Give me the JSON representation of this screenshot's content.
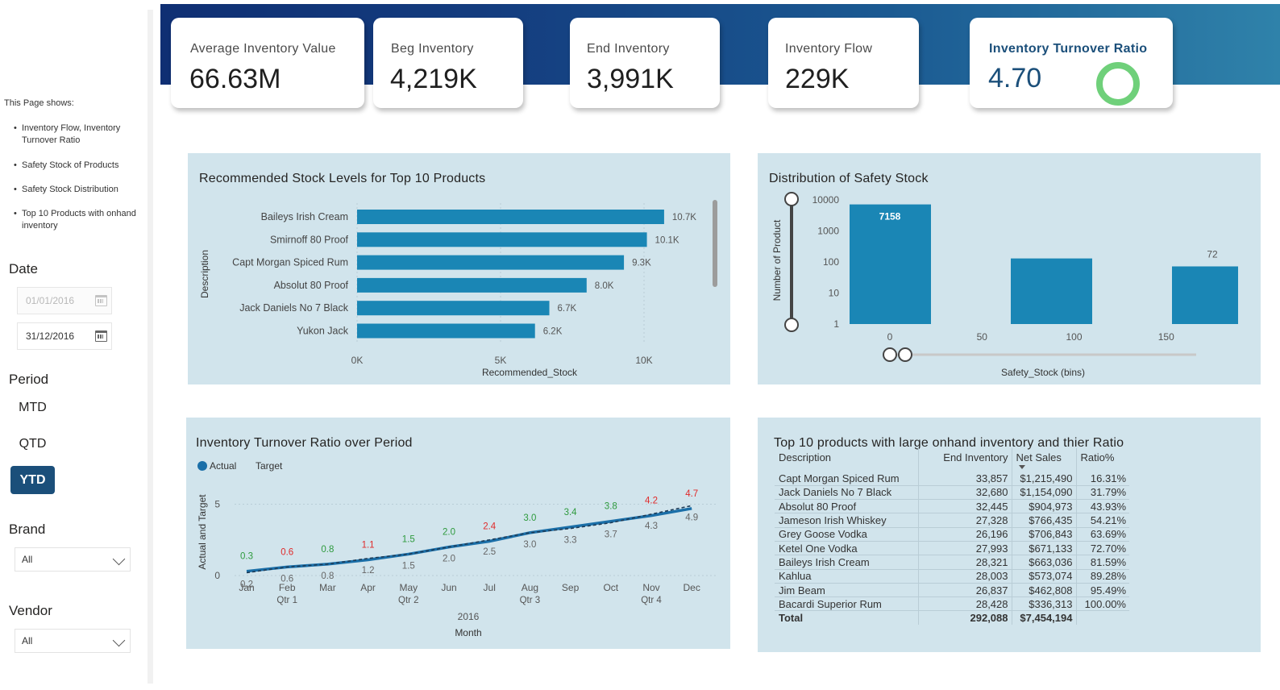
{
  "sidebar": {
    "intro_title": "This Page shows:",
    "intro_items": [
      "Inventory Flow, Inventory Turnover Ratio",
      "Safety Stock of Products",
      "Safety Stock Distribution",
      "Top 10 Products with onhand inventory"
    ],
    "date": {
      "label": "Date",
      "start": "01/01/2016",
      "end": "31/12/2016"
    },
    "period": {
      "label": "Period",
      "options": [
        "MTD",
        "QTD",
        "YTD"
      ],
      "selected": "YTD"
    },
    "brand": {
      "label": "Brand",
      "value": "All"
    },
    "vendor": {
      "label": "Vendor",
      "value": "All"
    }
  },
  "kpis": [
    {
      "label": "Average Inventory Value",
      "value": "66.63M"
    },
    {
      "label": "Beg Inventory",
      "value": "4,219K"
    },
    {
      "label": "End Inventory",
      "value": "3,991K"
    },
    {
      "label": "Inventory Flow",
      "value": "229K"
    },
    {
      "label": "Inventory Turnover Ratio",
      "value": "4.70"
    }
  ],
  "charts": {
    "stock": {
      "title": "Recommended Stock Levels for Top 10 Products"
    },
    "safety": {
      "title": "Distribution of Safety Stock"
    },
    "turnover": {
      "title": "Inventory Turnover Ratio over Period"
    },
    "top10": {
      "title": "Top 10 products with large onhand inventory and thier Ratio"
    }
  },
  "chart_data": [
    {
      "type": "bar",
      "orientation": "horizontal",
      "title": "Recommended Stock Levels for Top 10 Products",
      "xlabel": "Recommended_Stock",
      "ylabel": "Description",
      "categories": [
        "Baileys Irish Cream",
        "Smirnoff 80 Proof",
        "Capt Morgan Spiced Rum",
        "Absolut 80 Proof",
        "Jack Daniels No 7 Black",
        "Yukon Jack"
      ],
      "values": [
        10700,
        10100,
        9300,
        8000,
        6700,
        6200
      ],
      "data_labels": [
        "10.7K",
        "10.1K",
        "9.3K",
        "8.0K",
        "6.7K",
        "6.2K"
      ],
      "xticks": [
        "0K",
        "5K",
        "10K"
      ],
      "xlim": [
        0,
        11500
      ],
      "color": "#1a86b5"
    },
    {
      "type": "bar",
      "title": "Distribution of Safety Stock",
      "xlabel": "Safety_Stock (bins)",
      "ylabel": "Number of Product",
      "y_scale": "log",
      "ylim": [
        1,
        10000
      ],
      "yticks": [
        "10000",
        "1000",
        "100",
        "10",
        "1"
      ],
      "xticks": [
        "0",
        "50",
        "100",
        "150"
      ],
      "bins": [
        0,
        100,
        150
      ],
      "values": [
        7158,
        130,
        72
      ],
      "data_labels": [
        "7158",
        "",
        "72"
      ],
      "color": "#1a86b5"
    },
    {
      "type": "line",
      "title": "Inventory Turnover Ratio over Period",
      "xlabel": "Month",
      "ylabel": "Actual and Target",
      "year": "2016",
      "categories": [
        "Jan",
        "Feb",
        "Mar",
        "Apr",
        "May",
        "Jun",
        "Jul",
        "Aug",
        "Sep",
        "Oct",
        "Nov",
        "Dec"
      ],
      "quarters": [
        "Qtr 1",
        "Qtr 2",
        "Qtr 3",
        "Qtr 4"
      ],
      "yticks": [
        "0",
        "5"
      ],
      "ylim": [
        0,
        6
      ],
      "legend": [
        "Actual",
        "Target"
      ],
      "series": [
        {
          "name": "Actual",
          "values": [
            0.3,
            0.6,
            0.8,
            1.1,
            1.5,
            2.0,
            2.4,
            3.0,
            3.4,
            3.8,
            4.2,
            4.7
          ],
          "label_colors": [
            "#2e9a3d",
            "#e02a2a",
            "#2e9a3d",
            "#e02a2a",
            "#2e9a3d",
            "#2e9a3d",
            "#e02a2a",
            "#2e9a3d",
            "#2e9a3d",
            "#2e9a3d",
            "#e02a2a",
            "#e02a2a"
          ]
        },
        {
          "name": "Target",
          "values": [
            0.2,
            0.6,
            0.8,
            1.2,
            1.5,
            2.0,
            2.5,
            3.0,
            3.3,
            3.7,
            4.3,
            4.9
          ]
        }
      ]
    }
  ],
  "table": {
    "columns": [
      "Description",
      "End Inventory",
      "Net Sales",
      "Ratio%"
    ],
    "rows": [
      [
        "Capt Morgan Spiced Rum",
        "33,857",
        "$1,215,490",
        "16.31%"
      ],
      [
        "Jack Daniels No 7 Black",
        "32,680",
        "$1,154,090",
        "31.79%"
      ],
      [
        "Absolut 80 Proof",
        "32,445",
        "$904,973",
        "43.93%"
      ],
      [
        "Jameson Irish Whiskey",
        "27,328",
        "$766,435",
        "54.21%"
      ],
      [
        "Grey Goose Vodka",
        "26,196",
        "$706,843",
        "63.69%"
      ],
      [
        "Ketel One Vodka",
        "27,993",
        "$671,133",
        "72.70%"
      ],
      [
        "Baileys Irish Cream",
        "28,321",
        "$663,036",
        "81.59%"
      ],
      [
        "Kahlua",
        "28,003",
        "$573,074",
        "89.28%"
      ],
      [
        "Jim Beam",
        "26,837",
        "$462,808",
        "95.49%"
      ],
      [
        "Bacardi Superior Rum",
        "28,428",
        "$336,313",
        "100.00%"
      ]
    ],
    "total": [
      "Total",
      "292,088",
      "$7,454,194",
      ""
    ]
  }
}
